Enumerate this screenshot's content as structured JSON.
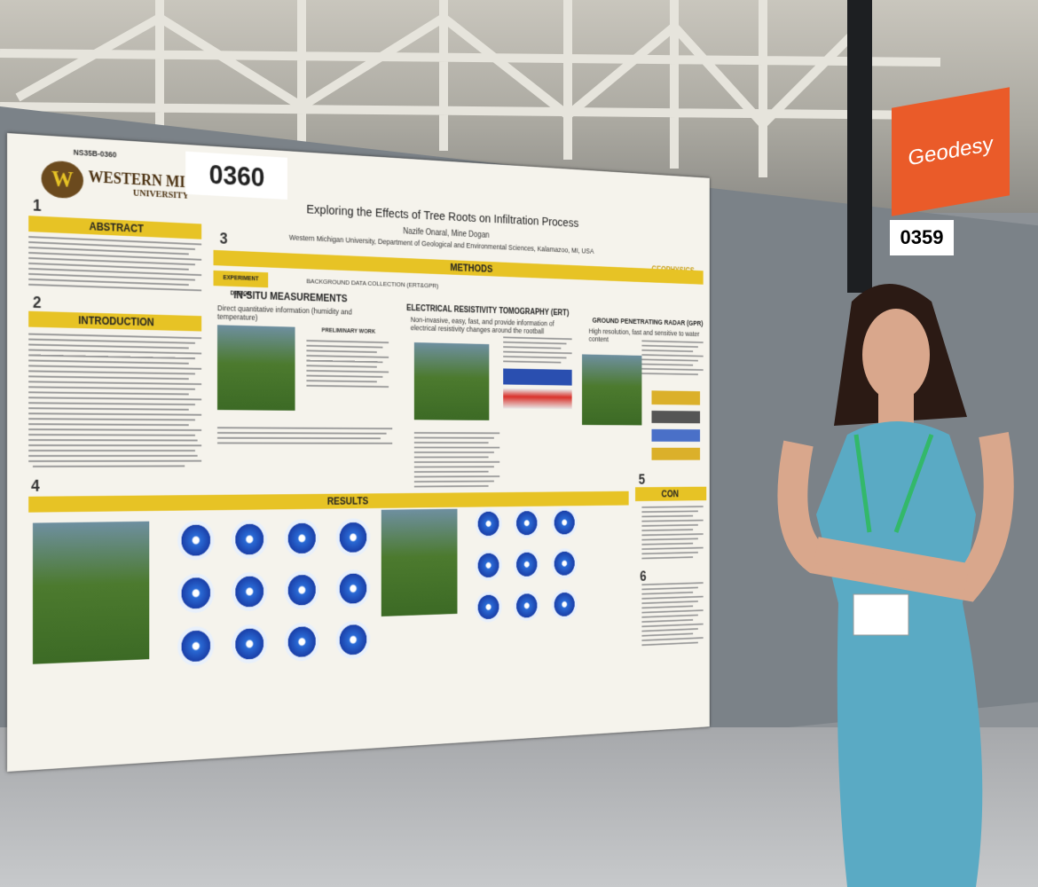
{
  "sign": {
    "text": "Geodesy",
    "next_board": "0359"
  },
  "poster": {
    "board_number": "0360",
    "session_code": "NS35B-0360",
    "university": "WESTERN MICHIGAN",
    "university_sub": "UNIVERSITY",
    "title": "Exploring the Effects of Tree Roots on Infiltration Process",
    "authors": "Nazife Onaral, Mine Dogan",
    "affiliation": "Western Michigan University, Department of Geological and Environmental Sciences, Kalamazoo, MI, USA",
    "lab_logo": "GEOPHYSICS",
    "sections": [
      {
        "number": "1",
        "title": "ABSTRACT"
      },
      {
        "number": "2",
        "title": "INTRODUCTION"
      },
      {
        "number": "3",
        "title": "METHODS"
      },
      {
        "number": "4",
        "title": "RESULTS"
      },
      {
        "number": "5",
        "title": "CON"
      },
      {
        "number": "6"
      }
    ],
    "experiment_design": "EXPERIMENT DESIGN",
    "background": "BACKGROUND DATA COLLECTION (ERT&GPR)",
    "methods": [
      {
        "title": "IN-SITU MEASUREMENTS",
        "text": "Direct quantitative information (humidity and temperature)"
      },
      {
        "title": "ELECTRICAL RESISTIVITY TOMOGRAPHY (ERT)",
        "text": "Non-invasive, easy, fast, and provide information of electrical resistivity changes around the rootball"
      },
      {
        "title": "GROUND PENETRATING RADAR (GPR)",
        "text": "High resolution, fast and sensitive to water content"
      }
    ],
    "preliminary": "PRELIMINARY WORK"
  }
}
